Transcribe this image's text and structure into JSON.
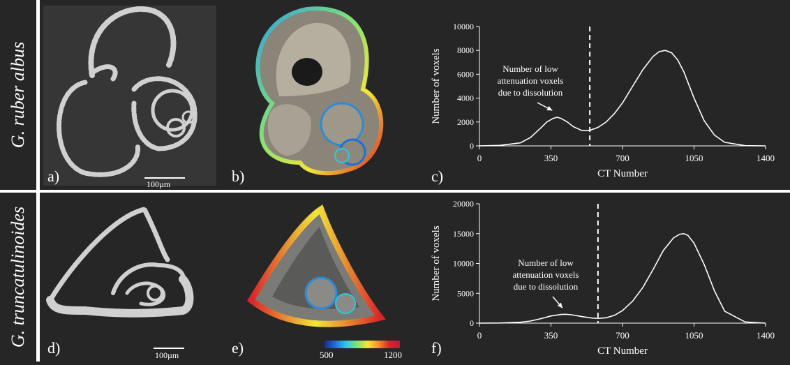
{
  "rows": [
    {
      "species": "G. ruber albus"
    },
    {
      "species": "G. truncatulinoides"
    }
  ],
  "panel_labels": {
    "a": "a)",
    "b": "b)",
    "c": "c)",
    "d": "d)",
    "e": "e)",
    "f": "f)"
  },
  "scale_bars": {
    "a": "100µm",
    "d": "100µm"
  },
  "colorbar": {
    "min_label": "500",
    "max_label": "1200",
    "colors": [
      "#1a2a8c",
      "#1f6fd6",
      "#2fc7e6",
      "#7de07a",
      "#f2e63a",
      "#f5902a",
      "#d9262a",
      "#c8143c"
    ]
  },
  "colors": {
    "background": "#262626",
    "line": "#ffffff",
    "divider": "#ffffff"
  },
  "chart_data": [
    {
      "type": "line",
      "panel": "c",
      "xlabel": "CT Number",
      "ylabel": "Number of voxels",
      "xlim": [
        0,
        1400
      ],
      "ylim": [
        0,
        10000
      ],
      "xticks": [
        0,
        350,
        700,
        1050,
        1400
      ],
      "yticks": [
        0,
        2000,
        4000,
        6000,
        8000,
        10000
      ],
      "threshold": 540,
      "annotation": [
        "Number of low",
        "attenuation voxels",
        "due to dissolution"
      ],
      "annotation_target": [
        370,
        2500
      ],
      "series": [
        {
          "x": [
            0,
            100,
            200,
            250,
            300,
            330,
            360,
            380,
            400,
            430,
            460,
            500,
            540,
            580,
            620,
            660,
            700,
            750,
            800,
            850,
            880,
            910,
            940,
            970,
            1000,
            1050,
            1100,
            1150,
            1200,
            1300,
            1400
          ],
          "y": [
            0,
            40,
            250,
            700,
            1500,
            2000,
            2300,
            2400,
            2300,
            2000,
            1600,
            1300,
            1300,
            1550,
            2000,
            2700,
            3600,
            5000,
            6400,
            7500,
            7900,
            8000,
            7800,
            7200,
            6200,
            4000,
            2100,
            900,
            300,
            20,
            0
          ]
        }
      ]
    },
    {
      "type": "line",
      "panel": "f",
      "xlabel": "CT Number",
      "ylabel": "Number of voxels",
      "xlim": [
        0,
        1400
      ],
      "ylim": [
        0,
        20000
      ],
      "xticks": [
        0,
        350,
        700,
        1050,
        1400
      ],
      "yticks": [
        0,
        5000,
        10000,
        15000,
        20000
      ],
      "threshold": 580,
      "annotation": [
        "Number of low",
        "attenuation voxels",
        "due to dissolution"
      ],
      "annotation_target": [
        420,
        1600
      ],
      "series": [
        {
          "x": [
            0,
            100,
            200,
            250,
            300,
            350,
            400,
            420,
            450,
            500,
            550,
            580,
            620,
            660,
            700,
            750,
            800,
            850,
            900,
            950,
            980,
            1000,
            1020,
            1050,
            1100,
            1150,
            1200,
            1300,
            1400
          ],
          "y": [
            0,
            20,
            150,
            350,
            750,
            1200,
            1450,
            1480,
            1400,
            1100,
            850,
            800,
            900,
            1300,
            2100,
            3700,
            6000,
            9000,
            12200,
            14300,
            14900,
            15000,
            14700,
            13400,
            9800,
            5400,
            2000,
            200,
            0
          ]
        }
      ]
    }
  ]
}
